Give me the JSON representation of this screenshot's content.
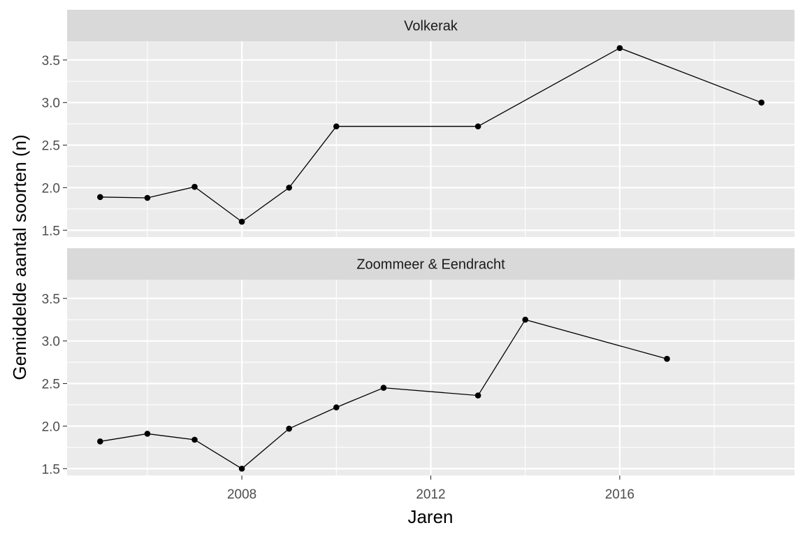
{
  "chart_data": {
    "type": "line",
    "xlabel": "Jaren",
    "ylabel": "Gemiddelde aantal soorten (n)",
    "xlim": [
      2004.3,
      2019.7
    ],
    "ylim": [
      1.42,
      3.72
    ],
    "x_ticks": [
      2008,
      2012,
      2016
    ],
    "x_tick_labels": [
      "2008",
      "2012",
      "2016"
    ],
    "x_minor_ticks": [
      2006,
      2010,
      2014,
      2018
    ],
    "y_ticks": [
      1.5,
      2.0,
      2.5,
      3.0,
      3.5
    ],
    "y_tick_labels": [
      "1.5",
      "2.0",
      "2.5",
      "3.0",
      "3.5"
    ],
    "y_minor_ticks": [
      1.75,
      2.25,
      2.75,
      3.25
    ],
    "grid": true,
    "colors": {
      "panel_bg": "#ebebeb",
      "strip_bg": "#d9d9d9",
      "grid": "#ffffff",
      "line": "#000000",
      "point": "#000000"
    },
    "panels": [
      {
        "strip": "Volkerak",
        "x": [
          2005,
          2006,
          2007,
          2008,
          2009,
          2010,
          2013,
          2016,
          2019
        ],
        "y": [
          1.89,
          1.88,
          2.01,
          1.6,
          2.0,
          2.72,
          2.72,
          3.64,
          3.0
        ]
      },
      {
        "strip": "Zoommeer & Eendracht",
        "x": [
          2005,
          2006,
          2007,
          2008,
          2009,
          2010,
          2011,
          2013,
          2014,
          2017
        ],
        "y": [
          1.82,
          1.91,
          1.84,
          1.5,
          1.97,
          2.22,
          2.45,
          2.36,
          3.25,
          2.79
        ]
      }
    ]
  }
}
